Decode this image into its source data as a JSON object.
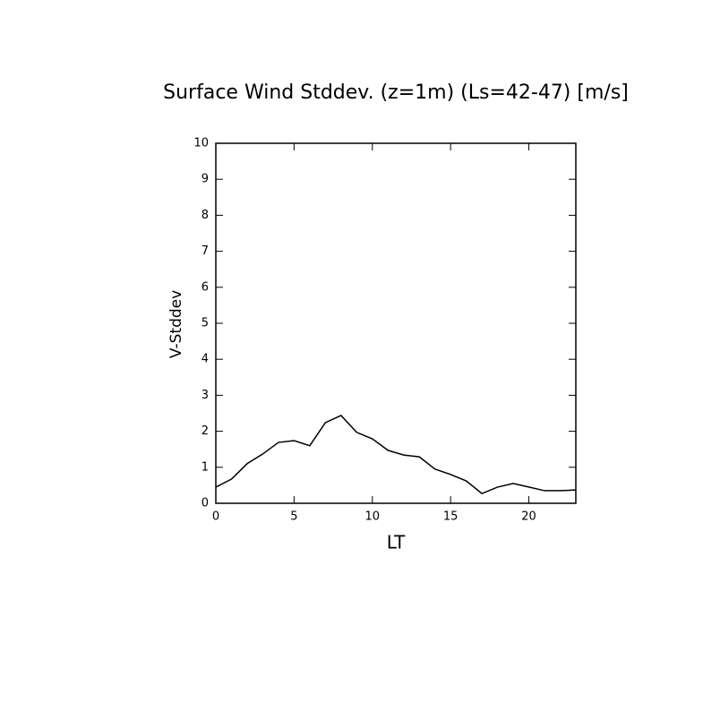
{
  "chart_data": {
    "type": "line",
    "title": "Surface Wind Stddev. (z=1m) (Ls=42-47) [m/s]",
    "x_label": "LT",
    "y_label": "V-Stddev",
    "x": [
      0,
      1,
      2,
      3,
      4,
      5,
      6,
      7,
      8,
      9,
      10,
      11,
      12,
      13,
      14,
      15,
      16,
      17,
      18,
      19,
      20,
      21,
      22,
      23
    ],
    "series": [
      {
        "name": "V-Stddev",
        "color": "#000000",
        "values": [
          0.45,
          0.67,
          1.1,
          1.37,
          1.69,
          1.74,
          1.6,
          2.24,
          2.44,
          1.97,
          1.79,
          1.47,
          1.34,
          1.29,
          0.95,
          0.8,
          0.62,
          0.27,
          0.45,
          0.55,
          0.45,
          0.35,
          0.35,
          0.37
        ]
      }
    ],
    "xlim": [
      0,
      23
    ],
    "xticks": [
      0,
      5,
      10,
      15,
      20
    ],
    "ylim": [
      0,
      10
    ],
    "yticks": [
      0,
      1,
      2,
      3,
      4,
      5,
      6,
      7,
      8,
      9,
      10
    ]
  }
}
